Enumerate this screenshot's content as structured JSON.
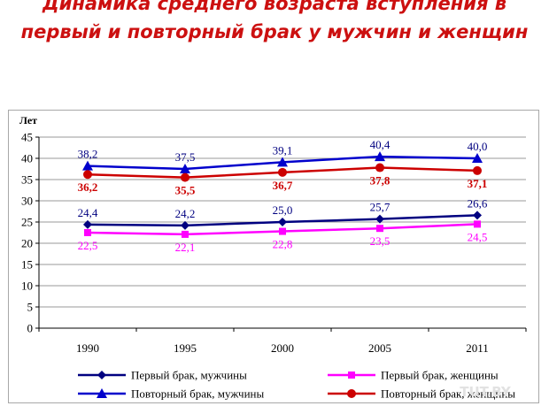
{
  "title_line1": "Динамика среднего возраста вступления в",
  "title_line2": "первый и повторный брак у мужчин и женщин",
  "watermark": "TUT.BY",
  "chart_data": {
    "type": "line",
    "title": "Динамика среднего возраста вступления в первый и повторный брак у мужчин и женщин",
    "ylabel": "Лет",
    "xlabel": "",
    "categories": [
      "1990",
      "1995",
      "2000",
      "2005",
      "2011"
    ],
    "ylim": [
      0,
      45
    ],
    "yticks": [
      "0",
      "5",
      "10",
      "15",
      "20",
      "25",
      "30",
      "35",
      "40",
      "45"
    ],
    "grid": true,
    "legend_position": "bottom",
    "series": [
      {
        "name": "Первый брак, мужчины",
        "color": "#000080",
        "marker": "diamond",
        "values": [
          24.4,
          24.2,
          25.0,
          25.7,
          26.6
        ],
        "labels": [
          "24,4",
          "24,2",
          "25,0",
          "25,7",
          "26,6"
        ],
        "label_color": "#000080",
        "label_pos": "above"
      },
      {
        "name": "Первый брак, женщины",
        "color": "#ff00ff",
        "marker": "square",
        "values": [
          22.5,
          22.1,
          22.8,
          23.5,
          24.5
        ],
        "labels": [
          "22,5",
          "22,1",
          "22,8",
          "23,5",
          "24,5"
        ],
        "label_color": "#ff00ff",
        "label_pos": "below"
      },
      {
        "name": "Повторный брак, мужчины",
        "color": "#0000cc",
        "marker": "triangle",
        "values": [
          38.2,
          37.5,
          39.1,
          40.4,
          40.0
        ],
        "labels": [
          "38,2",
          "37,5",
          "39,1",
          "40,4",
          "40,0"
        ],
        "label_color": "#000080",
        "label_pos": "above"
      },
      {
        "name": "Повторный брак, женщины",
        "color": "#cc0000",
        "marker": "circle",
        "values": [
          36.2,
          35.5,
          36.7,
          37.8,
          37.1
        ],
        "labels": [
          "36,2",
          "35,5",
          "36,7",
          "37,8",
          "37,1"
        ],
        "label_color": "#cc0000",
        "label_pos": "below",
        "label_bold": true
      }
    ]
  }
}
